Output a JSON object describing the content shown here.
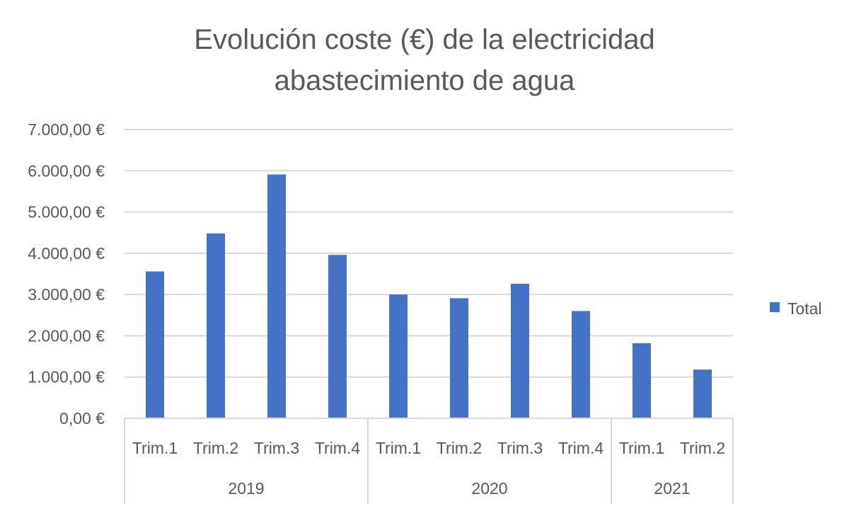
{
  "chart_data": {
    "type": "bar",
    "title_lines": [
      "Evolución coste (€) de la electricidad",
      "abastecimiento de agua"
    ],
    "groups": [
      {
        "label": "2019",
        "categories": [
          "Trim.1",
          "Trim.2",
          "Trim.3",
          "Trim.4"
        ]
      },
      {
        "label": "2020",
        "categories": [
          "Trim.1",
          "Trim.2",
          "Trim.3",
          "Trim.4"
        ]
      },
      {
        "label": "2021",
        "categories": [
          "Trim.1",
          "Trim.2"
        ]
      }
    ],
    "series": [
      {
        "name": "Total",
        "color": "#4472C4",
        "values": [
          3560,
          4480,
          5910,
          3960,
          3000,
          2910,
          3260,
          2600,
          1820,
          1180
        ]
      }
    ],
    "ylim": [
      0,
      7000
    ],
    "yticks": [
      "0,00 €",
      "1.000,00 €",
      "2.000,00 €",
      "3.000,00 €",
      "4.000,00 €",
      "5.000,00 €",
      "6.000,00 €",
      "7.000,00 €"
    ],
    "grid": true,
    "legend_position": "right"
  }
}
